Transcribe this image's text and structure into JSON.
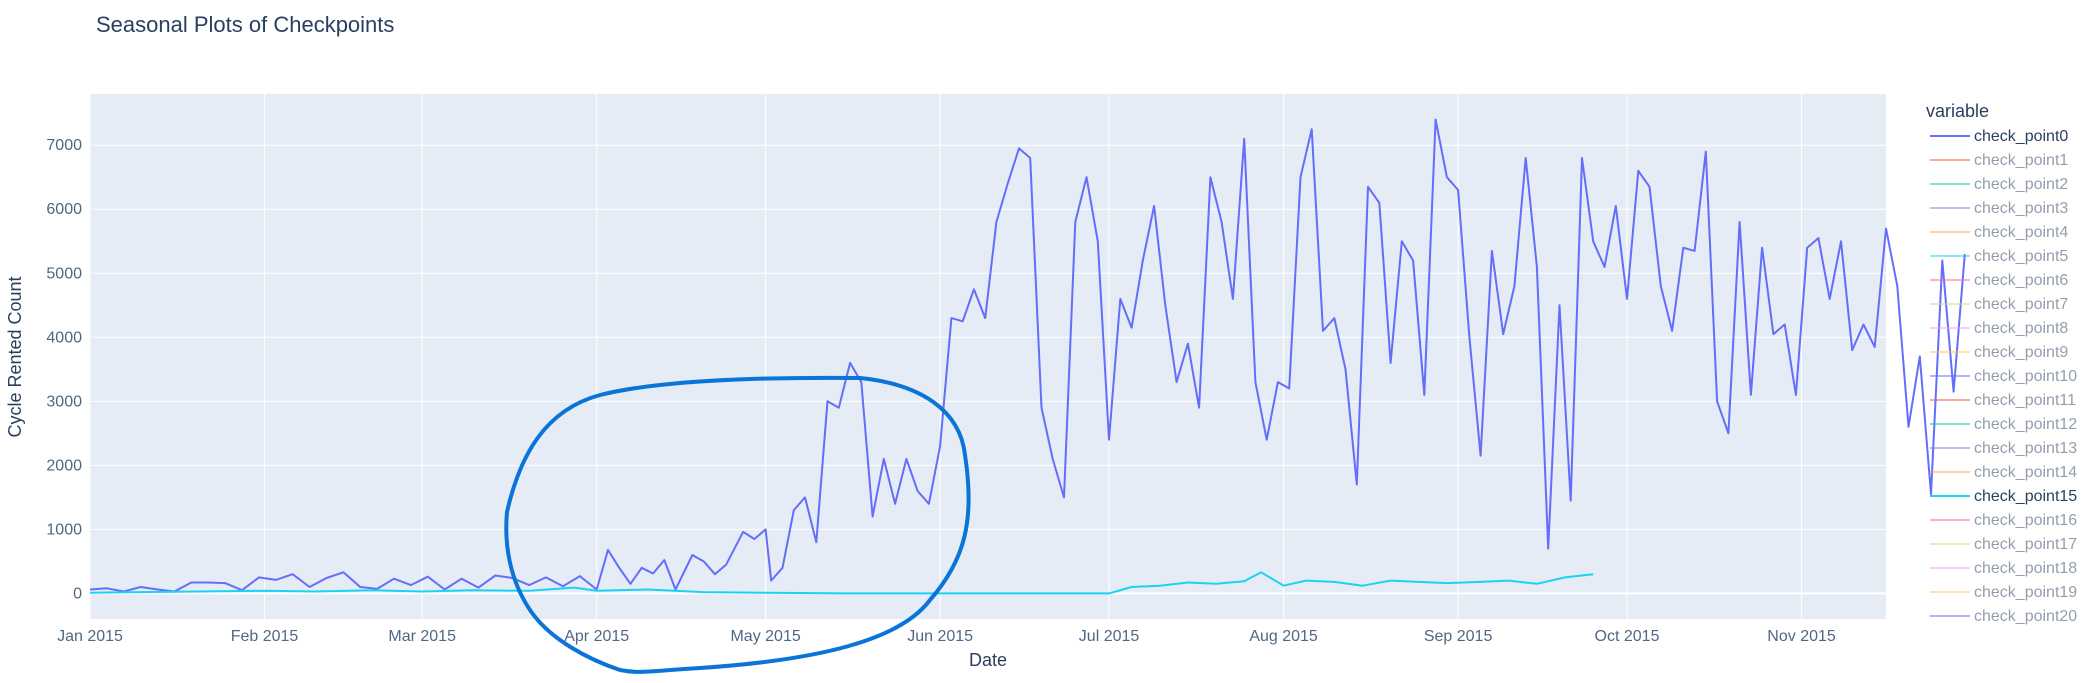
{
  "chart_data": {
    "type": "line",
    "title": "Seasonal Plots of Checkpoints",
    "xlabel": "Date",
    "ylabel": "Cycle Rented Count",
    "xlim": [
      "2015-01-01",
      "2015-11-16"
    ],
    "ylim": [
      -400,
      7800
    ],
    "x_ticks": [
      {
        "date": "2015-01-01",
        "label": "Jan 2015"
      },
      {
        "date": "2015-02-01",
        "label": "Feb 2015"
      },
      {
        "date": "2015-03-01",
        "label": "Mar 2015"
      },
      {
        "date": "2015-04-01",
        "label": "Apr 2015"
      },
      {
        "date": "2015-05-01",
        "label": "May 2015"
      },
      {
        "date": "2015-06-01",
        "label": "Jun 2015"
      },
      {
        "date": "2015-07-01",
        "label": "Jul 2015"
      },
      {
        "date": "2015-08-01",
        "label": "Aug 2015"
      },
      {
        "date": "2015-09-01",
        "label": "Sep 2015"
      },
      {
        "date": "2015-10-01",
        "label": "Oct 2015"
      },
      {
        "date": "2015-11-01",
        "label": "Nov 2015"
      }
    ],
    "y_ticks": [
      0,
      1000,
      2000,
      3000,
      4000,
      5000,
      6000,
      7000
    ],
    "grid": true,
    "background": "#e5ecf6",
    "legend": {
      "title": "variable",
      "placement": "right",
      "entries": [
        {
          "name": "check_point0",
          "color": "#636efa",
          "visible": true
        },
        {
          "name": "check_point1",
          "color": "#ef553b",
          "visible": false
        },
        {
          "name": "check_point2",
          "color": "#00cc96",
          "visible": false
        },
        {
          "name": "check_point3",
          "color": "#ab63fa",
          "visible": false
        },
        {
          "name": "check_point4",
          "color": "#ffa15a",
          "visible": false
        },
        {
          "name": "check_point5",
          "color": "#19d3f3",
          "visible": false
        },
        {
          "name": "check_point6",
          "color": "#ff6692",
          "visible": false
        },
        {
          "name": "check_point7",
          "color": "#b6e880",
          "visible": false
        },
        {
          "name": "check_point8",
          "color": "#ff97ff",
          "visible": false
        },
        {
          "name": "check_point9",
          "color": "#fecb52",
          "visible": false
        },
        {
          "name": "check_point10",
          "color": "#636efa",
          "visible": false
        },
        {
          "name": "check_point11",
          "color": "#ef553b",
          "visible": false
        },
        {
          "name": "check_point12",
          "color": "#00cc96",
          "visible": false
        },
        {
          "name": "check_point13",
          "color": "#ab63fa",
          "visible": false
        },
        {
          "name": "check_point14",
          "color": "#ffa15a",
          "visible": false
        },
        {
          "name": "check_point15",
          "color": "#19d3f3",
          "visible": true
        },
        {
          "name": "check_point16",
          "color": "#ff6692",
          "visible": false
        },
        {
          "name": "check_point17",
          "color": "#b6e880",
          "visible": false
        },
        {
          "name": "check_point18",
          "color": "#ff97ff",
          "visible": false
        },
        {
          "name": "check_point19",
          "color": "#fecb52",
          "visible": false
        },
        {
          "name": "check_point20",
          "color": "#636efa",
          "visible": false
        }
      ]
    },
    "series": [
      {
        "name": "check_point0",
        "color": "#636efa",
        "points": [
          [
            "2015-01-01",
            60
          ],
          [
            "2015-01-04",
            80
          ],
          [
            "2015-01-07",
            30
          ],
          [
            "2015-01-10",
            100
          ],
          [
            "2015-01-13",
            60
          ],
          [
            "2015-01-16",
            30
          ],
          [
            "2015-01-19",
            170
          ],
          [
            "2015-01-22",
            170
          ],
          [
            "2015-01-25",
            160
          ],
          [
            "2015-01-28",
            50
          ],
          [
            "2015-01-31",
            250
          ],
          [
            "2015-02-03",
            210
          ],
          [
            "2015-02-06",
            300
          ],
          [
            "2015-02-09",
            100
          ],
          [
            "2015-02-12",
            240
          ],
          [
            "2015-02-15",
            330
          ],
          [
            "2015-02-18",
            100
          ],
          [
            "2015-02-21",
            70
          ],
          [
            "2015-02-24",
            230
          ],
          [
            "2015-02-27",
            130
          ],
          [
            "2015-03-02",
            260
          ],
          [
            "2015-03-05",
            60
          ],
          [
            "2015-03-08",
            230
          ],
          [
            "2015-03-11",
            90
          ],
          [
            "2015-03-14",
            280
          ],
          [
            "2015-03-17",
            240
          ],
          [
            "2015-03-20",
            130
          ],
          [
            "2015-03-23",
            250
          ],
          [
            "2015-03-26",
            110
          ],
          [
            "2015-03-29",
            270
          ],
          [
            "2015-04-01",
            60
          ],
          [
            "2015-04-03",
            680
          ],
          [
            "2015-04-05",
            400
          ],
          [
            "2015-04-07",
            150
          ],
          [
            "2015-04-09",
            400
          ],
          [
            "2015-04-11",
            310
          ],
          [
            "2015-04-13",
            520
          ],
          [
            "2015-04-15",
            60
          ],
          [
            "2015-04-18",
            600
          ],
          [
            "2015-04-20",
            500
          ],
          [
            "2015-04-22",
            300
          ],
          [
            "2015-04-24",
            450
          ],
          [
            "2015-04-27",
            960
          ],
          [
            "2015-04-29",
            850
          ],
          [
            "2015-05-01",
            1000
          ],
          [
            "2015-05-02",
            200
          ],
          [
            "2015-05-04",
            400
          ],
          [
            "2015-05-06",
            1300
          ],
          [
            "2015-05-08",
            1500
          ],
          [
            "2015-05-10",
            800
          ],
          [
            "2015-05-12",
            3000
          ],
          [
            "2015-05-14",
            2900
          ],
          [
            "2015-05-16",
            3600
          ],
          [
            "2015-05-18",
            3300
          ],
          [
            "2015-05-20",
            1200
          ],
          [
            "2015-05-22",
            2100
          ],
          [
            "2015-05-24",
            1400
          ],
          [
            "2015-05-26",
            2100
          ],
          [
            "2015-05-28",
            1600
          ],
          [
            "2015-05-30",
            1400
          ],
          [
            "2015-06-01",
            2300
          ],
          [
            "2015-06-03",
            4300
          ],
          [
            "2015-06-05",
            4250
          ],
          [
            "2015-06-07",
            4750
          ],
          [
            "2015-06-09",
            4300
          ],
          [
            "2015-06-11",
            5800
          ],
          [
            "2015-06-13",
            6400
          ],
          [
            "2015-06-15",
            6950
          ],
          [
            "2015-06-17",
            6800
          ],
          [
            "2015-06-19",
            2900
          ],
          [
            "2015-06-21",
            2100
          ],
          [
            "2015-06-23",
            1500
          ],
          [
            "2015-06-25",
            5800
          ],
          [
            "2015-06-27",
            6500
          ],
          [
            "2015-06-29",
            5500
          ],
          [
            "2015-07-01",
            2400
          ],
          [
            "2015-07-03",
            4600
          ],
          [
            "2015-07-05",
            4150
          ],
          [
            "2015-07-07",
            5200
          ],
          [
            "2015-07-09",
            6050
          ],
          [
            "2015-07-11",
            4500
          ],
          [
            "2015-07-13",
            3300
          ],
          [
            "2015-07-15",
            3900
          ],
          [
            "2015-07-17",
            2900
          ],
          [
            "2015-07-19",
            6500
          ],
          [
            "2015-07-21",
            5800
          ],
          [
            "2015-07-23",
            4600
          ],
          [
            "2015-07-25",
            7100
          ],
          [
            "2015-07-27",
            3300
          ],
          [
            "2015-07-29",
            2400
          ],
          [
            "2015-07-31",
            3300
          ],
          [
            "2015-08-02",
            3200
          ],
          [
            "2015-08-04",
            6500
          ],
          [
            "2015-08-06",
            7250
          ],
          [
            "2015-08-08",
            4100
          ],
          [
            "2015-08-10",
            4300
          ],
          [
            "2015-08-12",
            3500
          ],
          [
            "2015-08-14",
            1700
          ],
          [
            "2015-08-16",
            6350
          ],
          [
            "2015-08-18",
            6100
          ],
          [
            "2015-08-20",
            3600
          ],
          [
            "2015-08-22",
            5500
          ],
          [
            "2015-08-24",
            5200
          ],
          [
            "2015-08-26",
            3100
          ],
          [
            "2015-08-28",
            7400
          ],
          [
            "2015-08-30",
            6500
          ],
          [
            "2015-09-01",
            6300
          ],
          [
            "2015-09-03",
            4000
          ],
          [
            "2015-09-05",
            2150
          ],
          [
            "2015-09-07",
            5350
          ],
          [
            "2015-09-09",
            4050
          ],
          [
            "2015-09-11",
            4800
          ],
          [
            "2015-09-13",
            6800
          ],
          [
            "2015-09-15",
            5100
          ],
          [
            "2015-09-17",
            700
          ],
          [
            "2015-09-19",
            4500
          ],
          [
            "2015-09-21",
            1450
          ],
          [
            "2015-09-23",
            6800
          ],
          [
            "2015-09-25",
            5500
          ],
          [
            "2015-09-27",
            5100
          ],
          [
            "2015-09-29",
            6050
          ],
          [
            "2015-10-01",
            4600
          ],
          [
            "2015-10-03",
            6600
          ],
          [
            "2015-10-05",
            6350
          ],
          [
            "2015-10-07",
            4800
          ],
          [
            "2015-10-09",
            4100
          ],
          [
            "2015-10-11",
            5400
          ],
          [
            "2015-10-13",
            5350
          ],
          [
            "2015-10-15",
            6900
          ],
          [
            "2015-10-17",
            3000
          ],
          [
            "2015-10-19",
            2500
          ],
          [
            "2015-10-21",
            5800
          ],
          [
            "2015-10-23",
            3100
          ],
          [
            "2015-10-25",
            5400
          ],
          [
            "2015-10-27",
            4050
          ],
          [
            "2015-10-29",
            4200
          ],
          [
            "2015-10-31",
            3100
          ],
          [
            "2015-11-02",
            5400
          ],
          [
            "2015-11-04",
            5550
          ],
          [
            "2015-11-06",
            4600
          ],
          [
            "2015-11-08",
            5500
          ],
          [
            "2015-11-10",
            3800
          ],
          [
            "2015-11-12",
            4200
          ],
          [
            "2015-11-14",
            3850
          ],
          [
            "2015-11-16",
            5700
          ],
          [
            "2015-11-18",
            4800
          ],
          [
            "2015-11-20",
            2600
          ],
          [
            "2015-11-22",
            3700
          ],
          [
            "2015-11-24",
            1550
          ],
          [
            "2015-11-26",
            5200
          ],
          [
            "2015-11-28",
            3150
          ],
          [
            "2015-11-30",
            5300
          ]
        ]
      },
      {
        "name": "check_point15",
        "color": "#19d3f3",
        "points": [
          [
            "2015-01-01",
            10
          ],
          [
            "2015-01-10",
            20
          ],
          [
            "2015-01-20",
            30
          ],
          [
            "2015-02-01",
            40
          ],
          [
            "2015-02-10",
            30
          ],
          [
            "2015-02-20",
            50
          ],
          [
            "2015-03-01",
            30
          ],
          [
            "2015-03-10",
            50
          ],
          [
            "2015-03-20",
            40
          ],
          [
            "2015-03-28",
            90
          ],
          [
            "2015-04-01",
            40
          ],
          [
            "2015-04-10",
            60
          ],
          [
            "2015-04-20",
            20
          ],
          [
            "2015-05-01",
            10
          ],
          [
            "2015-05-15",
            0
          ],
          [
            "2015-06-01",
            0
          ],
          [
            "2015-06-15",
            0
          ],
          [
            "2015-07-01",
            0
          ],
          [
            "2015-07-05",
            100
          ],
          [
            "2015-07-10",
            120
          ],
          [
            "2015-07-15",
            170
          ],
          [
            "2015-07-20",
            150
          ],
          [
            "2015-07-25",
            190
          ],
          [
            "2015-07-28",
            330
          ],
          [
            "2015-08-01",
            120
          ],
          [
            "2015-08-05",
            200
          ],
          [
            "2015-08-10",
            180
          ],
          [
            "2015-08-15",
            120
          ],
          [
            "2015-08-20",
            200
          ],
          [
            "2015-08-25",
            180
          ],
          [
            "2015-08-30",
            160
          ],
          [
            "2015-09-05",
            180
          ],
          [
            "2015-09-10",
            200
          ],
          [
            "2015-09-15",
            150
          ],
          [
            "2015-09-20",
            250
          ],
          [
            "2015-09-25",
            300
          ]
        ]
      }
    ]
  }
}
